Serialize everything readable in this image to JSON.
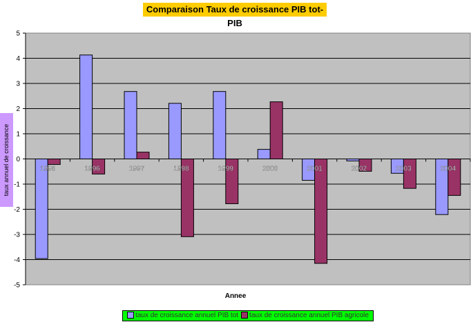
{
  "chart_data": {
    "type": "bar",
    "title": "Comparaison Taux de croissance PIB tot-PIB",
    "xlabel": "Annee",
    "ylabel": "taux annuel de croissance",
    "ylim": [
      -5,
      5
    ],
    "yticks": [
      5,
      4,
      3,
      2,
      1,
      0,
      -1,
      -2,
      -3,
      -4,
      -5
    ],
    "grid": true,
    "legend_position": "bottom",
    "categories": [
      "1995",
      "1996",
      "1997",
      "1998",
      "1999",
      "2000",
      "2001",
      "2002",
      "2003",
      "2004"
    ],
    "series": [
      {
        "name": "taux de croissance annuel PIB tot",
        "color": "#9999ff",
        "values": [
          -3.96,
          4.13,
          2.68,
          2.21,
          2.68,
          0.38,
          -0.85,
          -0.08,
          -0.57,
          -2.21
        ]
      },
      {
        "name": "taux de croissance annuel PIB agricole",
        "color": "#993366",
        "values": [
          -0.22,
          -0.6,
          0.27,
          -3.09,
          -1.78,
          2.27,
          -4.15,
          -0.49,
          -1.17,
          -1.45
        ]
      }
    ],
    "colors": {
      "plot_background": "#c0c0c0",
      "title_background": "#ffcc00",
      "legend_background": "#00ff00",
      "ylabel_background": "#cc99ff"
    }
  }
}
